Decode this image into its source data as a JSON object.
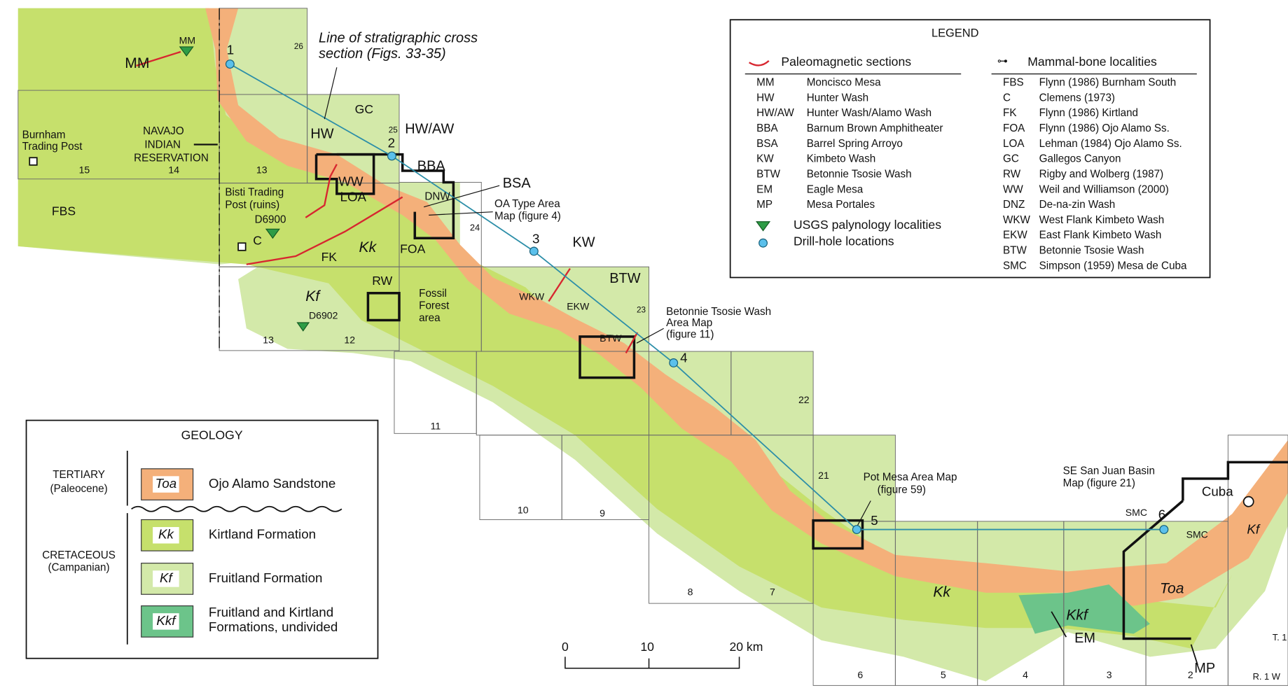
{
  "legend": {
    "title": "LEGEND",
    "paleomag_heading": "Paleomagnetic sections",
    "paleomag": [
      {
        "code": "MM",
        "name": "Moncisco Mesa"
      },
      {
        "code": "HW",
        "name": "Hunter Wash"
      },
      {
        "code": "HW/AW",
        "name": "Hunter Wash/Alamo Wash"
      },
      {
        "code": "BBA",
        "name": "Barnum Brown Amphitheater"
      },
      {
        "code": "BSA",
        "name": "Barrel Spring Arroyo"
      },
      {
        "code": "KW",
        "name": "Kimbeto Wash"
      },
      {
        "code": "BTW",
        "name": "Betonnie Tsosie Wash"
      },
      {
        "code": "EM",
        "name": "Eagle Mesa"
      },
      {
        "code": "MP",
        "name": "Mesa Portales"
      }
    ],
    "palynology": "USGS palynology localities",
    "drill": "Drill-hole locations",
    "mammal_heading": "Mammal-bone localities",
    "mammal": [
      {
        "code": "FBS",
        "name": "Flynn (1986) Burnham South"
      },
      {
        "code": "C",
        "name": "Clemens (1973)"
      },
      {
        "code": "FK",
        "name": "Flynn (1986) Kirtland"
      },
      {
        "code": "FOA",
        "name": "Flynn (1986) Ojo Alamo Ss."
      },
      {
        "code": "LOA",
        "name": "Lehman (1984) Ojo Alamo Ss."
      },
      {
        "code": "GC",
        "name": "Gallegos Canyon"
      },
      {
        "code": "RW",
        "name": "Rigby and Wolberg (1987)"
      },
      {
        "code": "WW",
        "name": "Weil and Williamson (2000)"
      },
      {
        "code": "DNZ",
        "name": "De-na-zin Wash"
      },
      {
        "code": "WKW",
        "name": "West Flank Kimbeto Wash"
      },
      {
        "code": "EKW",
        "name": "East Flank Kimbeto Wash"
      },
      {
        "code": "BTW",
        "name": "Betonnie Tsosie Wash"
      },
      {
        "code": "SMC",
        "name": "Simpson (1959) Mesa de Cuba"
      }
    ]
  },
  "geology": {
    "title": "GEOLOGY",
    "tertiary": "TERTIARY",
    "tertiary_sub": "(Paleocene)",
    "cretaceous": "CRETACEOUS",
    "cretaceous_sub": "(Campanian)",
    "units": [
      {
        "code": "Toa",
        "name": "Ojo Alamo Sandstone"
      },
      {
        "code": "Kk",
        "name": "Kirtland Formation"
      },
      {
        "code": "Kf",
        "name": "Fruitland Formation"
      },
      {
        "code": "Kkf",
        "name": "Fruitland and Kirtland",
        "name2": "Formations, undivided"
      }
    ]
  },
  "map_labels": [
    "MM",
    "MM",
    "1",
    "26",
    "Line of stratigraphic cross",
    "section (Figs. 33-35)",
    "GC",
    "25",
    "2",
    "HW/AW",
    "HW",
    "BBA",
    "BSA",
    "WW",
    "LOA",
    "DNW",
    "OA Type Area",
    "Map (figure 4)",
    "Burnham",
    "Trading Post",
    "NAVAJO",
    "INDIAN",
    "RESERVATION",
    "15",
    "14",
    "13",
    "FBS",
    "Bisti Trading",
    "Post (ruins)",
    "D6900",
    "Kk",
    "FOA",
    "24",
    "C",
    "FK",
    "3",
    "KW",
    "BTW",
    "Kf",
    "RW",
    "Fossil",
    "Forest",
    "area",
    "D6902",
    "13",
    "12",
    "WKW",
    "EKW",
    "23",
    "Betonnie Tsosie Wash",
    "Area Map",
    "(figure 11)",
    "BTW",
    "4",
    "22",
    "11",
    "10",
    "9",
    "21",
    "Pot Mesa Area Map",
    "(figure 59)",
    "5",
    "SE San Juan Basin",
    "Map (figure 21)",
    "Cuba",
    "SMC",
    "6",
    "SMC",
    "Kf",
    "Toa",
    "Kkf",
    "Kk",
    "EM",
    "MP",
    "8",
    "7",
    "6",
    "5",
    "4",
    "3",
    "2",
    "T. 1",
    "R. 1 W"
  ],
  "scale": [
    "0",
    "10",
    "20 km"
  ]
}
